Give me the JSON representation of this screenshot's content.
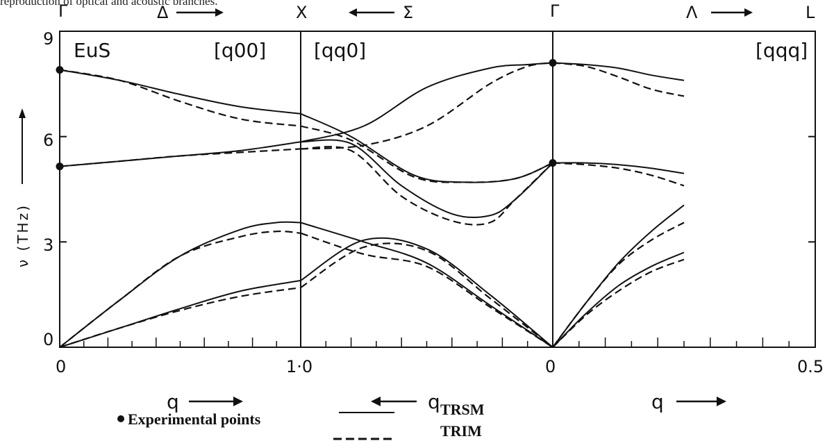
{
  "caption": "reproduction of optical and acoustic branches.",
  "chart_data": {
    "type": "line",
    "ylabel": "ν (THz)",
    "ylim": [
      0,
      9
    ],
    "yticks": [
      "0",
      "3",
      "6",
      "9"
    ],
    "grid": false,
    "material": "EuS",
    "panels": [
      {
        "direction": "[q00]",
        "from_point": "Γ",
        "branch": "Δ",
        "to_point": "X",
        "q_start": "0",
        "q_end": "1·0",
        "q_label": "q"
      },
      {
        "direction": "[qq0]",
        "from_point": "X",
        "branch": "Σ",
        "to_point": "Γ",
        "q_start": "1·0",
        "q_end": "0",
        "q_label": "q"
      },
      {
        "direction": "[qqq]",
        "from_point": "Γ",
        "branch": "Λ",
        "to_point": "L",
        "q_start": "0",
        "q_end": "0.5",
        "q_label": "q"
      }
    ],
    "experimental_points": [
      {
        "q_point": "Γ",
        "panel": "[q00]",
        "frequency": 7.9
      },
      {
        "q_point": "Γ",
        "panel": "[q00]",
        "frequency": 5.15
      },
      {
        "q_point": "Γ",
        "panel": "[qqq]",
        "frequency": 8.1
      },
      {
        "q_point": "Γ",
        "panel": "[qqq]",
        "frequency": 5.25
      }
    ],
    "series": [
      {
        "name": "TRSM",
        "style": "solid",
        "branches": [
          {
            "panel": "[q00]",
            "x": [
              0,
              0.25,
              0.5,
              0.75,
              1.0
            ],
            "y": [
              7.9,
              7.6,
              7.2,
              6.85,
              6.65
            ]
          },
          {
            "panel": "[q00]",
            "x": [
              0,
              0.25,
              0.5,
              0.75,
              1.0
            ],
            "y": [
              5.15,
              5.3,
              5.45,
              5.6,
              5.85
            ]
          },
          {
            "panel": "[q00]",
            "x": [
              0,
              0.25,
              0.5,
              0.75,
              0.9,
              1.0
            ],
            "y": [
              0,
              1.35,
              2.6,
              3.35,
              3.55,
              3.55
            ]
          },
          {
            "panel": "[q00]",
            "x": [
              0,
              0.25,
              0.5,
              0.75,
              1.0
            ],
            "y": [
              0,
              0.55,
              1.1,
              1.6,
              1.9
            ]
          },
          {
            "panel": "[qq0]",
            "x": [
              0,
              0.25,
              0.5,
              0.75,
              0.9,
              1.0
            ],
            "y": [
              5.85,
              6.3,
              7.4,
              7.95,
              8.05,
              8.1
            ]
          },
          {
            "panel": "[qq0]",
            "x": [
              0,
              0.2,
              0.45,
              0.65,
              0.85,
              1.0
            ],
            "y": [
              6.65,
              6.0,
              4.9,
              4.7,
              4.8,
              5.25
            ]
          },
          {
            "panel": "[qq0]",
            "x": [
              0,
              0.2,
              0.4,
              0.6,
              0.75,
              0.85,
              1.0
            ],
            "y": [
              5.85,
              5.8,
              4.6,
              3.8,
              3.75,
              4.2,
              5.25
            ]
          },
          {
            "panel": "[qq0]",
            "x": [
              0,
              0.25,
              0.5,
              0.75,
              1.0
            ],
            "y": [
              3.55,
              3.0,
              2.4,
              1.2,
              0
            ]
          },
          {
            "panel": "[qq0]",
            "x": [
              0,
              0.25,
              0.5,
              0.75,
              1.0
            ],
            "y": [
              1.9,
              3.05,
              2.8,
              1.5,
              0
            ]
          },
          {
            "panel": "[qqq]",
            "x": [
              0,
              0.125,
              0.25,
              0.375,
              0.5
            ],
            "y": [
              8.1,
              8.05,
              7.95,
              7.75,
              7.6
            ]
          },
          {
            "panel": "[qqq]",
            "x": [
              0,
              0.125,
              0.25,
              0.375,
              0.5
            ],
            "y": [
              5.25,
              5.25,
              5.2,
              5.1,
              4.95
            ]
          },
          {
            "panel": "[qqq]",
            "x": [
              0,
              0.125,
              0.25,
              0.375,
              0.5
            ],
            "y": [
              0,
              1.25,
              2.4,
              3.3,
              4.05
            ]
          },
          {
            "panel": "[qqq]",
            "x": [
              0,
              0.125,
              0.25,
              0.375,
              0.5
            ],
            "y": [
              0,
              0.95,
              1.75,
              2.3,
              2.7
            ]
          }
        ]
      },
      {
        "name": "TRIM",
        "style": "dashed",
        "branches": [
          {
            "panel": "[q00]",
            "x": [
              0,
              0.25,
              0.5,
              0.75,
              1.0
            ],
            "y": [
              7.9,
              7.6,
              7.0,
              6.5,
              6.3
            ]
          },
          {
            "panel": "[q00]",
            "x": [
              0,
              0.25,
              0.5,
              0.75,
              1.0
            ],
            "y": [
              5.15,
              5.3,
              5.45,
              5.55,
              5.65
            ]
          },
          {
            "panel": "[q00]",
            "x": [
              0,
              0.25,
              0.5,
              0.75,
              0.9,
              1.0
            ],
            "y": [
              0,
              1.35,
              2.6,
              3.15,
              3.3,
              3.25
            ]
          },
          {
            "panel": "[q00]",
            "x": [
              0,
              0.25,
              0.5,
              0.75,
              1.0
            ],
            "y": [
              0,
              0.55,
              1.05,
              1.45,
              1.7
            ]
          },
          {
            "panel": "[qq0]",
            "x": [
              0,
              0.25,
              0.5,
              0.75,
              0.9,
              1.0
            ],
            "y": [
              5.65,
              5.75,
              6.3,
              7.5,
              8.0,
              8.1
            ]
          },
          {
            "panel": "[qq0]",
            "x": [
              0,
              0.2,
              0.45,
              0.65,
              0.85,
              1.0
            ],
            "y": [
              6.3,
              5.9,
              4.85,
              4.7,
              4.8,
              5.25
            ]
          },
          {
            "panel": "[qq0]",
            "x": [
              0,
              0.2,
              0.4,
              0.6,
              0.75,
              0.85,
              1.0
            ],
            "y": [
              5.65,
              5.6,
              4.3,
              3.6,
              3.55,
              4.2,
              5.25
            ]
          },
          {
            "panel": "[qq0]",
            "x": [
              0,
              0.25,
              0.5,
              0.75,
              1.0
            ],
            "y": [
              3.25,
              2.65,
              2.3,
              1.15,
              0
            ]
          },
          {
            "panel": "[qq0]",
            "x": [
              0,
              0.25,
              0.5,
              0.75,
              1.0
            ],
            "y": [
              1.7,
              2.85,
              2.75,
              1.4,
              0
            ]
          },
          {
            "panel": "[qqq]",
            "x": [
              0,
              0.125,
              0.25,
              0.375,
              0.5
            ],
            "y": [
              8.1,
              8.0,
              7.7,
              7.35,
              7.15
            ]
          },
          {
            "panel": "[qqq]",
            "x": [
              0,
              0.125,
              0.25,
              0.375,
              0.5
            ],
            "y": [
              5.25,
              5.2,
              5.1,
              4.9,
              4.6
            ]
          },
          {
            "panel": "[qqq]",
            "x": [
              0,
              0.125,
              0.25,
              0.375,
              0.5
            ],
            "y": [
              0,
              1.25,
              2.35,
              3.05,
              3.55
            ]
          },
          {
            "panel": "[qqq]",
            "x": [
              0,
              0.125,
              0.25,
              0.375,
              0.5
            ],
            "y": [
              0,
              0.9,
              1.6,
              2.15,
              2.5
            ]
          }
        ]
      }
    ],
    "legend": {
      "placement": "bottom",
      "experimental_label": "Experimental points",
      "solid_label": "TRSM",
      "dashed_label": "TRIM"
    }
  }
}
